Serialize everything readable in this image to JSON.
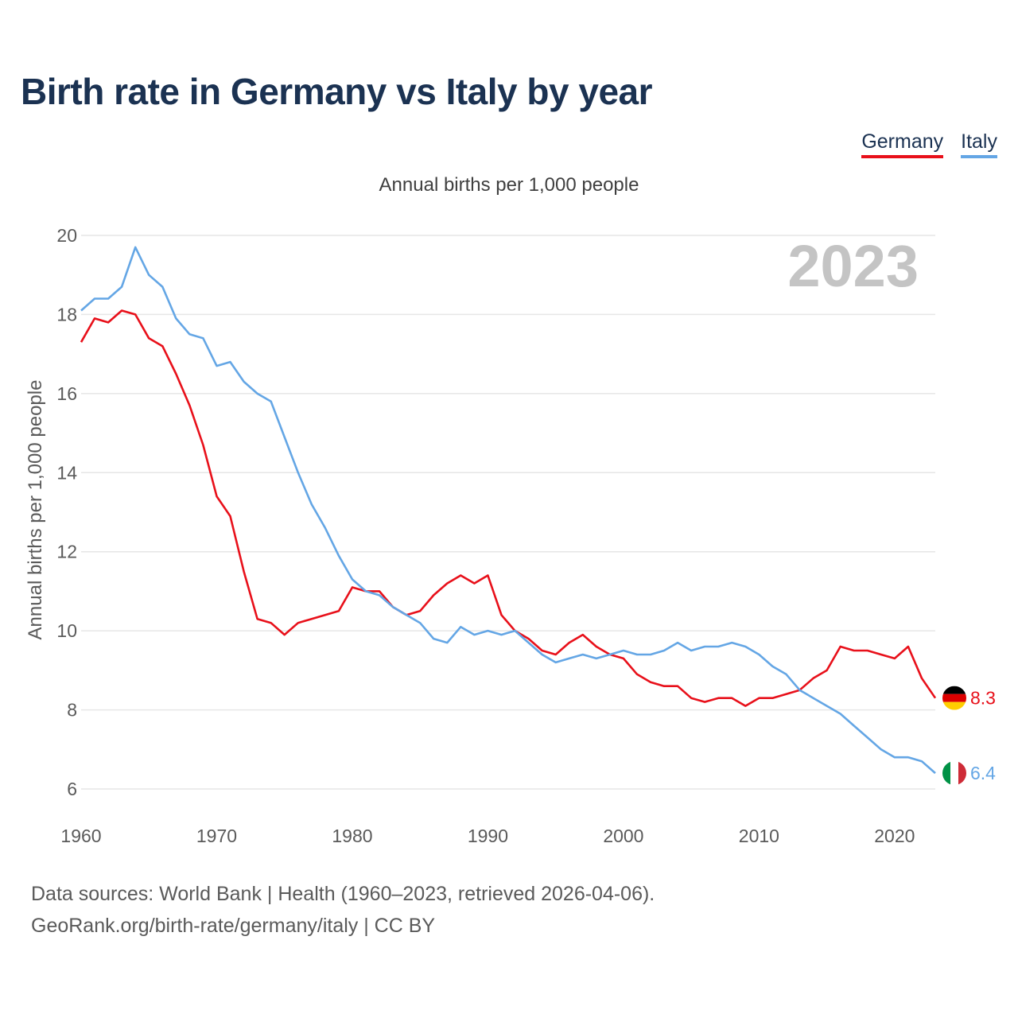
{
  "page": {
    "title": "Birth rate in Germany vs Italy by year",
    "footer_sources": "Data sources: World Bank | Health (1960–2023, retrieved 2026-04-06).",
    "footer_link": "GeoRank.org/birth-rate/germany/italy | CC BY"
  },
  "legend": [
    {
      "name": "Germany",
      "color": "#e8101a"
    },
    {
      "name": "Italy",
      "color": "#64a6e5"
    }
  ],
  "chart_data": {
    "type": "line",
    "title": "Birth rate in Germany vs Italy by year",
    "subtitle": "Annual births per 1,000 people",
    "ylabel": "Annual births per 1,000 people",
    "xlabel": "",
    "watermark_year": "2023",
    "xlim": [
      1960,
      2023
    ],
    "ylim": [
      5.2,
      20
    ],
    "x_ticks": [
      1960,
      1970,
      1980,
      1990,
      2000,
      2010,
      2020
    ],
    "y_ticks": [
      6,
      8,
      10,
      12,
      14,
      16,
      18,
      20
    ],
    "grid": true,
    "x": [
      1960,
      1961,
      1962,
      1963,
      1964,
      1965,
      1966,
      1967,
      1968,
      1969,
      1970,
      1971,
      1972,
      1973,
      1974,
      1975,
      1976,
      1977,
      1978,
      1979,
      1980,
      1981,
      1982,
      1983,
      1984,
      1985,
      1986,
      1987,
      1988,
      1989,
      1990,
      1991,
      1992,
      1993,
      1994,
      1995,
      1996,
      1997,
      1998,
      1999,
      2000,
      2001,
      2002,
      2003,
      2004,
      2005,
      2006,
      2007,
      2008,
      2009,
      2010,
      2011,
      2012,
      2013,
      2014,
      2015,
      2016,
      2017,
      2018,
      2019,
      2020,
      2021,
      2022,
      2023
    ],
    "series": [
      {
        "name": "Germany",
        "color": "#e8101a",
        "end_label": "8.3",
        "flag": "germany-flag",
        "values": [
          17.3,
          17.9,
          17.8,
          18.1,
          18.0,
          17.4,
          17.2,
          16.5,
          15.7,
          14.7,
          13.4,
          12.9,
          11.5,
          10.3,
          10.2,
          9.9,
          10.2,
          10.3,
          10.4,
          10.5,
          11.1,
          11.0,
          11.0,
          10.6,
          10.4,
          10.5,
          10.9,
          11.2,
          11.4,
          11.2,
          11.4,
          10.4,
          10.0,
          9.8,
          9.5,
          9.4,
          9.7,
          9.9,
          9.6,
          9.4,
          9.3,
          8.9,
          8.7,
          8.6,
          8.6,
          8.3,
          8.2,
          8.3,
          8.3,
          8.1,
          8.3,
          8.3,
          8.4,
          8.5,
          8.8,
          9.0,
          9.6,
          9.5,
          9.5,
          9.4,
          9.3,
          9.6,
          8.8,
          8.3
        ]
      },
      {
        "name": "Italy",
        "color": "#64a6e5",
        "end_label": "6.4",
        "flag": "italy-flag",
        "values": [
          18.1,
          18.4,
          18.4,
          18.7,
          19.7,
          19.0,
          18.7,
          17.9,
          17.5,
          17.4,
          16.7,
          16.8,
          16.3,
          16.0,
          15.8,
          14.9,
          14.0,
          13.2,
          12.6,
          11.9,
          11.3,
          11.0,
          10.9,
          10.6,
          10.4,
          10.2,
          9.8,
          9.7,
          10.1,
          9.9,
          10.0,
          9.9,
          10.0,
          9.7,
          9.4,
          9.2,
          9.3,
          9.4,
          9.3,
          9.4,
          9.5,
          9.4,
          9.4,
          9.5,
          9.7,
          9.5,
          9.6,
          9.6,
          9.7,
          9.6,
          9.4,
          9.1,
          8.9,
          8.5,
          8.3,
          8.1,
          7.9,
          7.6,
          7.3,
          7.0,
          6.8,
          6.8,
          6.7,
          6.4
        ]
      }
    ]
  }
}
